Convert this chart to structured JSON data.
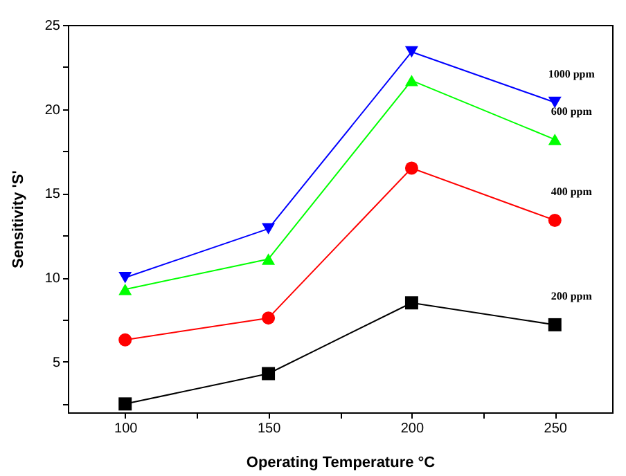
{
  "chart_data": {
    "type": "line",
    "xlabel": "Operating Temperature °C",
    "ylabel": "Sensitivity 'S'",
    "x": [
      100,
      150,
      200,
      250
    ],
    "series": [
      {
        "name": "1000 ppm",
        "color": "#0000ff",
        "marker": "triangle-down",
        "values": [
          10.0,
          12.9,
          23.4,
          20.4
        ]
      },
      {
        "name": "600 ppm",
        "color": "#00ff00",
        "marker": "triangle",
        "values": [
          9.3,
          11.1,
          21.7,
          18.2
        ]
      },
      {
        "name": "400 ppm",
        "color": "#ff0000",
        "marker": "circle",
        "values": [
          6.3,
          7.6,
          16.5,
          13.4
        ]
      },
      {
        "name": "200 ppm",
        "color": "#000000",
        "marker": "square",
        "values": [
          2.5,
          4.3,
          8.5,
          7.2
        ]
      }
    ],
    "xlim": [
      80,
      270
    ],
    "ylim": [
      2,
      25
    ],
    "xticks": [
      100,
      {
        "value": 125,
        "label": null
      },
      150,
      {
        "value": 175,
        "label": null
      },
      200,
      {
        "value": 225,
        "label": null
      },
      250
    ],
    "yticks": [
      {
        "value": 2.5,
        "label": null
      },
      5,
      {
        "value": 7.5,
        "label": null
      },
      10,
      {
        "value": 12.5,
        "label": null
      },
      15,
      {
        "value": 17.5,
        "label": null
      },
      20,
      {
        "value": 22.5,
        "label": null
      },
      25
    ],
    "grid": false,
    "legend": false,
    "line_style": "solid"
  }
}
